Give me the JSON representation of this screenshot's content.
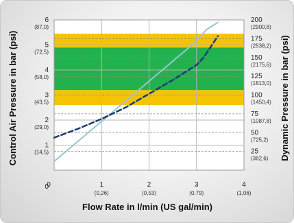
{
  "chart_data": {
    "type": "line",
    "xlabel": "Flow Rate in l/min (US gal/min)",
    "ylabel": "Control Air Pressure in bar (psi)",
    "y2label": "Dynamic Pressure in bar (psi)",
    "xlim": [
      0,
      4
    ],
    "ylim": [
      0,
      6
    ],
    "y2lim": [
      0,
      200
    ],
    "grid": true,
    "x_ticks": [
      {
        "value": 0,
        "label": "0",
        "sub": ""
      },
      {
        "value": 1,
        "label": "1",
        "sub": "(0,26)"
      },
      {
        "value": 2,
        "label": "2",
        "sub": "(0,53)"
      },
      {
        "value": 3,
        "label": "3",
        "sub": "(0,79)"
      },
      {
        "value": 4,
        "label": "4",
        "sub": "(1,06)"
      }
    ],
    "y_ticks": [
      {
        "value": 0,
        "label": "0",
        "sub": ""
      },
      {
        "value": 1,
        "label": "1",
        "sub": "(14,5)"
      },
      {
        "value": 2,
        "label": "2",
        "sub": "(29,0)"
      },
      {
        "value": 3,
        "label": "3",
        "sub": "(43,5)"
      },
      {
        "value": 4,
        "label": "4",
        "sub": "(58,0)"
      },
      {
        "value": 5,
        "label": "5",
        "sub": "(72,5)"
      },
      {
        "value": 6,
        "label": "6",
        "sub": "(87,0)"
      }
    ],
    "y2_ticks": [
      {
        "value": 25,
        "label": "25",
        "sub": "(362,6)"
      },
      {
        "value": 50,
        "label": "50",
        "sub": "(725,2)"
      },
      {
        "value": 75,
        "label": "75",
        "sub": "(1087,8)"
      },
      {
        "value": 100,
        "label": "100",
        "sub": "(1450,4)"
      },
      {
        "value": 125,
        "label": "125",
        "sub": "(1813,0)"
      },
      {
        "value": 150,
        "label": "150",
        "sub": "(2175,6)"
      },
      {
        "value": 175,
        "label": "175",
        "sub": "(2538,2)"
      },
      {
        "value": 200,
        "label": "200",
        "sub": "(2900,8)"
      }
    ],
    "bands": [
      {
        "from": 2.6,
        "to": 3.2,
        "color": "#f5c400"
      },
      {
        "from": 3.2,
        "to": 4.9,
        "color": "#22b14c"
      },
      {
        "from": 4.9,
        "to": 5.45,
        "color": "#f5c400"
      }
    ],
    "series": [
      {
        "style": "solid",
        "color": "#9cc3d8",
        "x": [
          0,
          0.5,
          1,
          1.5,
          2,
          2.5,
          3,
          3.2,
          3.45
        ],
        "y": [
          0.35,
          1.15,
          1.95,
          2.75,
          3.55,
          4.35,
          5.15,
          5.6,
          5.9
        ]
      },
      {
        "style": "dashed",
        "color": "#1d3f74",
        "x": [
          0,
          0.5,
          1,
          1.5,
          2,
          2.5,
          3,
          3.15,
          3.45
        ],
        "y": [
          1.3,
          1.65,
          2.05,
          2.5,
          3.05,
          3.6,
          4.2,
          4.5,
          5.35
        ]
      }
    ]
  }
}
